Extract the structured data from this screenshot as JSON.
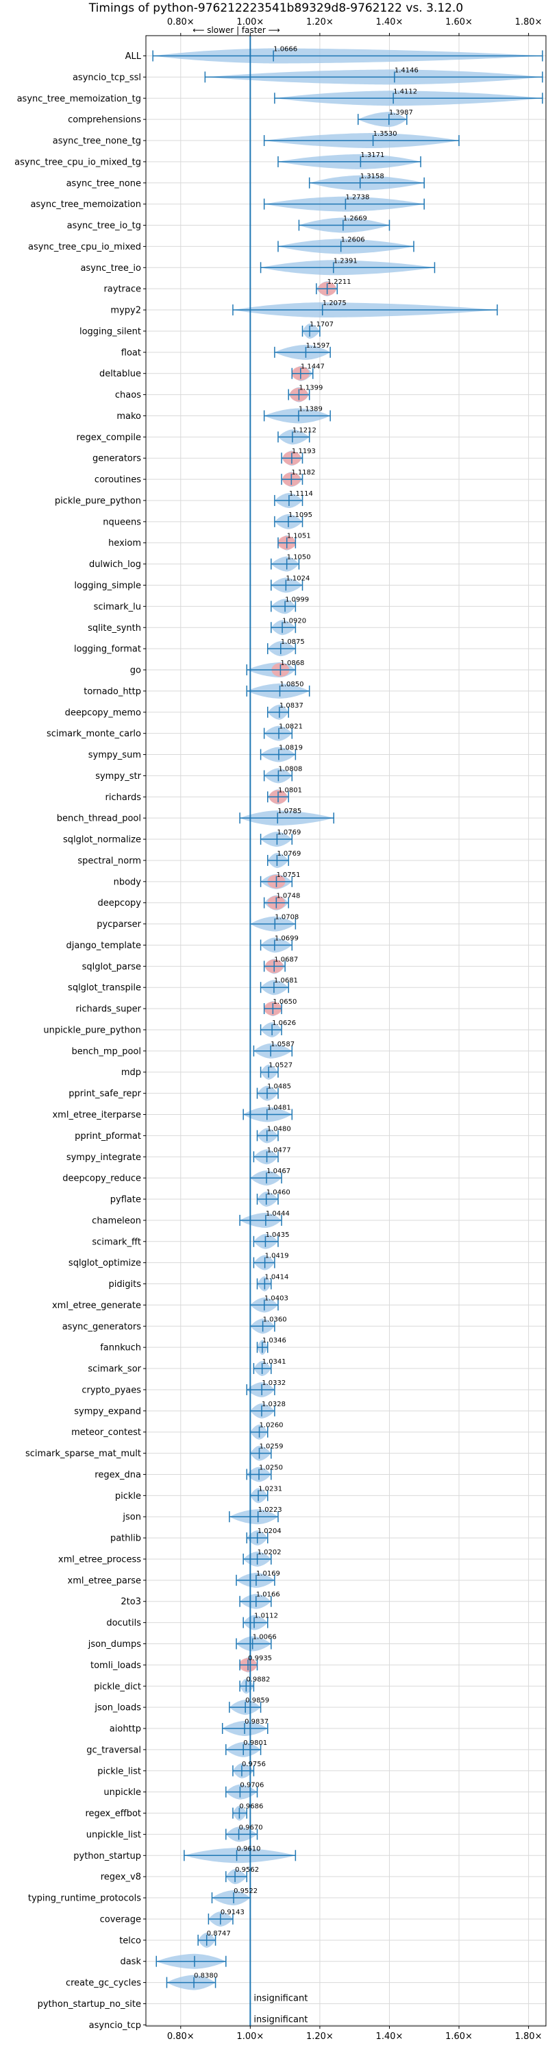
{
  "chart_data": {
    "type": "violin",
    "title": "Timings of python-976212223541b89329d8-9762122 vs. 3.12.0",
    "subtitle": "⟵ slower | faster ⟶",
    "xlim": [
      0.7,
      1.85
    ],
    "xticks": [
      0.8,
      1.0,
      1.2,
      1.4,
      1.6,
      1.8
    ],
    "xtick_labels": [
      "0.80×",
      "1.00×",
      "1.20×",
      "1.40×",
      "1.60×",
      "1.80×"
    ],
    "grid": true,
    "reference_line": 1.0,
    "colors": {
      "violin": "#9fc5e8",
      "axis_line": "#1f77b4",
      "highlight": "#f4a6a6",
      "grid": "#d9d9d9"
    },
    "benchmarks": [
      {
        "name": "ALL",
        "value": 1.0666,
        "label": "1.0666",
        "min": 0.72,
        "max": 1.84,
        "highlight": false
      },
      {
        "name": "asyncio_tcp_ssl",
        "value": 1.4146,
        "label": "1.4146",
        "min": 0.87,
        "max": 1.84,
        "highlight": false
      },
      {
        "name": "async_tree_memoization_tg",
        "value": 1.4112,
        "label": "1.4112",
        "min": 1.07,
        "max": 1.84,
        "highlight": false
      },
      {
        "name": "comprehensions",
        "value": 1.3987,
        "label": "1.3987",
        "min": 1.31,
        "max": 1.45,
        "highlight": false
      },
      {
        "name": "async_tree_none_tg",
        "value": 1.353,
        "label": "1.3530",
        "min": 1.04,
        "max": 1.6,
        "highlight": false
      },
      {
        "name": "async_tree_cpu_io_mixed_tg",
        "value": 1.3171,
        "label": "1.3171",
        "min": 1.08,
        "max": 1.49,
        "highlight": false
      },
      {
        "name": "async_tree_none",
        "value": 1.3158,
        "label": "1.3158",
        "min": 1.17,
        "max": 1.5,
        "highlight": false
      },
      {
        "name": "async_tree_memoization",
        "value": 1.2738,
        "label": "1.2738",
        "min": 1.04,
        "max": 1.5,
        "highlight": false
      },
      {
        "name": "async_tree_io_tg",
        "value": 1.2669,
        "label": "1.2669",
        "min": 1.14,
        "max": 1.4,
        "highlight": false
      },
      {
        "name": "async_tree_cpu_io_mixed",
        "value": 1.2606,
        "label": "1.2606",
        "min": 1.08,
        "max": 1.47,
        "highlight": false
      },
      {
        "name": "async_tree_io",
        "value": 1.2391,
        "label": "1.2391",
        "min": 1.03,
        "max": 1.53,
        "highlight": false
      },
      {
        "name": "raytrace",
        "value": 1.2211,
        "label": "1.2211",
        "min": 1.19,
        "max": 1.25,
        "highlight": true
      },
      {
        "name": "mypy2",
        "value": 1.2075,
        "label": "1.2075",
        "min": 0.95,
        "max": 1.71,
        "highlight": false
      },
      {
        "name": "logging_silent",
        "value": 1.1707,
        "label": "1.1707",
        "min": 1.15,
        "max": 1.2,
        "highlight": false
      },
      {
        "name": "float",
        "value": 1.1597,
        "label": "1.1597",
        "min": 1.07,
        "max": 1.23,
        "highlight": false
      },
      {
        "name": "deltablue",
        "value": 1.1447,
        "label": "1.1447",
        "min": 1.12,
        "max": 1.18,
        "highlight": true
      },
      {
        "name": "chaos",
        "value": 1.1399,
        "label": "1.1399",
        "min": 1.11,
        "max": 1.17,
        "highlight": true
      },
      {
        "name": "mako",
        "value": 1.1389,
        "label": "1.1389",
        "min": 1.04,
        "max": 1.23,
        "highlight": false
      },
      {
        "name": "regex_compile",
        "value": 1.1212,
        "label": "1.1212",
        "min": 1.08,
        "max": 1.17,
        "highlight": false
      },
      {
        "name": "generators",
        "value": 1.1193,
        "label": "1.1193",
        "min": 1.09,
        "max": 1.15,
        "highlight": true
      },
      {
        "name": "coroutines",
        "value": 1.1182,
        "label": "1.1182",
        "min": 1.09,
        "max": 1.15,
        "highlight": true
      },
      {
        "name": "pickle_pure_python",
        "value": 1.1114,
        "label": "1.1114",
        "min": 1.07,
        "max": 1.15,
        "highlight": false
      },
      {
        "name": "nqueens",
        "value": 1.1095,
        "label": "1.1095",
        "min": 1.07,
        "max": 1.15,
        "highlight": false
      },
      {
        "name": "hexiom",
        "value": 1.1051,
        "label": "1.1051",
        "min": 1.08,
        "max": 1.13,
        "highlight": true
      },
      {
        "name": "dulwich_log",
        "value": 1.105,
        "label": "1.1050",
        "min": 1.06,
        "max": 1.14,
        "highlight": false
      },
      {
        "name": "logging_simple",
        "value": 1.1024,
        "label": "1.1024",
        "min": 1.06,
        "max": 1.15,
        "highlight": false
      },
      {
        "name": "scimark_lu",
        "value": 1.0999,
        "label": "1.0999",
        "min": 1.06,
        "max": 1.13,
        "highlight": false
      },
      {
        "name": "sqlite_synth",
        "value": 1.092,
        "label": "1.0920",
        "min": 1.06,
        "max": 1.13,
        "highlight": false
      },
      {
        "name": "logging_format",
        "value": 1.0875,
        "label": "1.0875",
        "min": 1.05,
        "max": 1.13,
        "highlight": false
      },
      {
        "name": "go",
        "value": 1.0868,
        "label": "1.0868",
        "min": 0.99,
        "max": 1.13,
        "highlight": true
      },
      {
        "name": "tornado_http",
        "value": 1.085,
        "label": "1.0850",
        "min": 0.99,
        "max": 1.17,
        "highlight": false
      },
      {
        "name": "deepcopy_memo",
        "value": 1.0837,
        "label": "1.0837",
        "min": 1.05,
        "max": 1.11,
        "highlight": false
      },
      {
        "name": "scimark_monte_carlo",
        "value": 1.0821,
        "label": "1.0821",
        "min": 1.04,
        "max": 1.12,
        "highlight": false
      },
      {
        "name": "sympy_sum",
        "value": 1.0819,
        "label": "1.0819",
        "min": 1.03,
        "max": 1.13,
        "highlight": false
      },
      {
        "name": "sympy_str",
        "value": 1.0808,
        "label": "1.0808",
        "min": 1.04,
        "max": 1.12,
        "highlight": false
      },
      {
        "name": "richards",
        "value": 1.0801,
        "label": "1.0801",
        "min": 1.05,
        "max": 1.11,
        "highlight": true
      },
      {
        "name": "bench_thread_pool",
        "value": 1.0785,
        "label": "1.0785",
        "min": 0.97,
        "max": 1.24,
        "highlight": false
      },
      {
        "name": "sqlglot_normalize",
        "value": 1.0769,
        "label": "1.0769",
        "min": 1.03,
        "max": 1.12,
        "highlight": false
      },
      {
        "name": "spectral_norm",
        "value": 1.0769,
        "label": "1.0769",
        "min": 1.05,
        "max": 1.11,
        "highlight": false
      },
      {
        "name": "nbody",
        "value": 1.0751,
        "label": "1.0751",
        "min": 1.03,
        "max": 1.12,
        "highlight": true
      },
      {
        "name": "deepcopy",
        "value": 1.0748,
        "label": "1.0748",
        "min": 1.04,
        "max": 1.11,
        "highlight": true
      },
      {
        "name": "pycparser",
        "value": 1.0708,
        "label": "1.0708",
        "min": 1.0,
        "max": 1.13,
        "highlight": false
      },
      {
        "name": "django_template",
        "value": 1.0699,
        "label": "1.0699",
        "min": 1.03,
        "max": 1.12,
        "highlight": false
      },
      {
        "name": "sqlglot_parse",
        "value": 1.0687,
        "label": "1.0687",
        "min": 1.04,
        "max": 1.1,
        "highlight": true
      },
      {
        "name": "sqlglot_transpile",
        "value": 1.0681,
        "label": "1.0681",
        "min": 1.03,
        "max": 1.11,
        "highlight": false
      },
      {
        "name": "richards_super",
        "value": 1.065,
        "label": "1.0650",
        "min": 1.04,
        "max": 1.09,
        "highlight": true
      },
      {
        "name": "unpickle_pure_python",
        "value": 1.0626,
        "label": "1.0626",
        "min": 1.03,
        "max": 1.09,
        "highlight": false
      },
      {
        "name": "bench_mp_pool",
        "value": 1.0587,
        "label": "1.0587",
        "min": 1.01,
        "max": 1.12,
        "highlight": false
      },
      {
        "name": "mdp",
        "value": 1.0527,
        "label": "1.0527",
        "min": 1.03,
        "max": 1.08,
        "highlight": false
      },
      {
        "name": "pprint_safe_repr",
        "value": 1.0485,
        "label": "1.0485",
        "min": 1.02,
        "max": 1.08,
        "highlight": false
      },
      {
        "name": "xml_etree_iterparse",
        "value": 1.0481,
        "label": "1.0481",
        "min": 0.98,
        "max": 1.12,
        "highlight": false
      },
      {
        "name": "pprint_pformat",
        "value": 1.048,
        "label": "1.0480",
        "min": 1.02,
        "max": 1.08,
        "highlight": false
      },
      {
        "name": "sympy_integrate",
        "value": 1.0477,
        "label": "1.0477",
        "min": 1.01,
        "max": 1.08,
        "highlight": false
      },
      {
        "name": "deepcopy_reduce",
        "value": 1.0467,
        "label": "1.0467",
        "min": 1.0,
        "max": 1.09,
        "highlight": false
      },
      {
        "name": "pyflate",
        "value": 1.046,
        "label": "1.0460",
        "min": 1.02,
        "max": 1.08,
        "highlight": false
      },
      {
        "name": "chameleon",
        "value": 1.0444,
        "label": "1.0444",
        "min": 0.97,
        "max": 1.09,
        "highlight": false
      },
      {
        "name": "scimark_fft",
        "value": 1.0435,
        "label": "1.0435",
        "min": 1.01,
        "max": 1.08,
        "highlight": false
      },
      {
        "name": "sqlglot_optimize",
        "value": 1.0419,
        "label": "1.0419",
        "min": 1.01,
        "max": 1.07,
        "highlight": false
      },
      {
        "name": "pidigits",
        "value": 1.0414,
        "label": "1.0414",
        "min": 1.02,
        "max": 1.06,
        "highlight": false
      },
      {
        "name": "xml_etree_generate",
        "value": 1.0403,
        "label": "1.0403",
        "min": 1.0,
        "max": 1.08,
        "highlight": false
      },
      {
        "name": "async_generators",
        "value": 1.036,
        "label": "1.0360",
        "min": 1.0,
        "max": 1.07,
        "highlight": false
      },
      {
        "name": "fannkuch",
        "value": 1.0346,
        "label": "1.0346",
        "min": 1.02,
        "max": 1.05,
        "highlight": false
      },
      {
        "name": "scimark_sor",
        "value": 1.0341,
        "label": "1.0341",
        "min": 1.01,
        "max": 1.06,
        "highlight": false
      },
      {
        "name": "crypto_pyaes",
        "value": 1.0332,
        "label": "1.0332",
        "min": 0.99,
        "max": 1.07,
        "highlight": false
      },
      {
        "name": "sympy_expand",
        "value": 1.0328,
        "label": "1.0328",
        "min": 1.0,
        "max": 1.07,
        "highlight": false
      },
      {
        "name": "meteor_contest",
        "value": 1.026,
        "label": "1.0260",
        "min": 1.0,
        "max": 1.05,
        "highlight": false
      },
      {
        "name": "scimark_sparse_mat_mult",
        "value": 1.0259,
        "label": "1.0259",
        "min": 1.0,
        "max": 1.06,
        "highlight": false
      },
      {
        "name": "regex_dna",
        "value": 1.025,
        "label": "1.0250",
        "min": 0.99,
        "max": 1.06,
        "highlight": false
      },
      {
        "name": "pickle",
        "value": 1.0231,
        "label": "1.0231",
        "min": 1.0,
        "max": 1.05,
        "highlight": false
      },
      {
        "name": "json",
        "value": 1.0223,
        "label": "1.0223",
        "min": 0.94,
        "max": 1.08,
        "highlight": false
      },
      {
        "name": "pathlib",
        "value": 1.0204,
        "label": "1.0204",
        "min": 0.99,
        "max": 1.05,
        "highlight": false
      },
      {
        "name": "xml_etree_process",
        "value": 1.0202,
        "label": "1.0202",
        "min": 0.98,
        "max": 1.06,
        "highlight": false
      },
      {
        "name": "xml_etree_parse",
        "value": 1.0169,
        "label": "1.0169",
        "min": 0.96,
        "max": 1.07,
        "highlight": false
      },
      {
        "name": "2to3",
        "value": 1.0166,
        "label": "1.0166",
        "min": 0.97,
        "max": 1.06,
        "highlight": false
      },
      {
        "name": "docutils",
        "value": 1.0112,
        "label": "1.0112",
        "min": 0.98,
        "max": 1.05,
        "highlight": false
      },
      {
        "name": "json_dumps",
        "value": 1.0066,
        "label": "1.0066",
        "min": 0.96,
        "max": 1.06,
        "highlight": false
      },
      {
        "name": "tomli_loads",
        "value": 0.9935,
        "label": "0.9935",
        "min": 0.97,
        "max": 1.02,
        "highlight": true
      },
      {
        "name": "pickle_dict",
        "value": 0.9882,
        "label": "0.9882",
        "min": 0.97,
        "max": 1.01,
        "highlight": false
      },
      {
        "name": "json_loads",
        "value": 0.9859,
        "label": "0.9859",
        "min": 0.94,
        "max": 1.03,
        "highlight": false
      },
      {
        "name": "aiohttp",
        "value": 0.9837,
        "label": "0.9837",
        "min": 0.92,
        "max": 1.05,
        "highlight": false
      },
      {
        "name": "gc_traversal",
        "value": 0.9801,
        "label": "0.9801",
        "min": 0.93,
        "max": 1.03,
        "highlight": false
      },
      {
        "name": "pickle_list",
        "value": 0.9756,
        "label": "0.9756",
        "min": 0.95,
        "max": 1.01,
        "highlight": false
      },
      {
        "name": "unpickle",
        "value": 0.9706,
        "label": "0.9706",
        "min": 0.93,
        "max": 1.02,
        "highlight": false
      },
      {
        "name": "regex_effbot",
        "value": 0.9686,
        "label": "0.9686",
        "min": 0.95,
        "max": 0.99,
        "highlight": false
      },
      {
        "name": "unpickle_list",
        "value": 0.967,
        "label": "0.9670",
        "min": 0.93,
        "max": 1.02,
        "highlight": false
      },
      {
        "name": "python_startup",
        "value": 0.961,
        "label": "0.9610",
        "min": 0.81,
        "max": 1.13,
        "highlight": false
      },
      {
        "name": "regex_v8",
        "value": 0.9562,
        "label": "0.9562",
        "min": 0.93,
        "max": 0.99,
        "highlight": false
      },
      {
        "name": "typing_runtime_protocols",
        "value": 0.9522,
        "label": "0.9522",
        "min": 0.89,
        "max": 1.0,
        "highlight": false
      },
      {
        "name": "coverage",
        "value": 0.9143,
        "label": "0.9143",
        "min": 0.88,
        "max": 0.95,
        "highlight": false
      },
      {
        "name": "telco",
        "value": 0.8747,
        "label": "0.8747",
        "min": 0.85,
        "max": 0.9,
        "highlight": false
      },
      {
        "name": "dask",
        "value": 0.8398,
        "label": "",
        "min": 0.73,
        "max": 0.93,
        "highlight": false
      },
      {
        "name": "create_gc_cycles",
        "value": 0.838,
        "label": "0.8380",
        "min": 0.76,
        "max": 0.9,
        "highlight": false
      },
      {
        "name": "python_startup_no_site",
        "value": 1.0,
        "label": "insignificant",
        "min": null,
        "max": null,
        "highlight": false
      },
      {
        "name": "asyncio_tcp",
        "value": 1.0,
        "label": "insignificant",
        "min": null,
        "max": null,
        "highlight": false
      }
    ]
  }
}
